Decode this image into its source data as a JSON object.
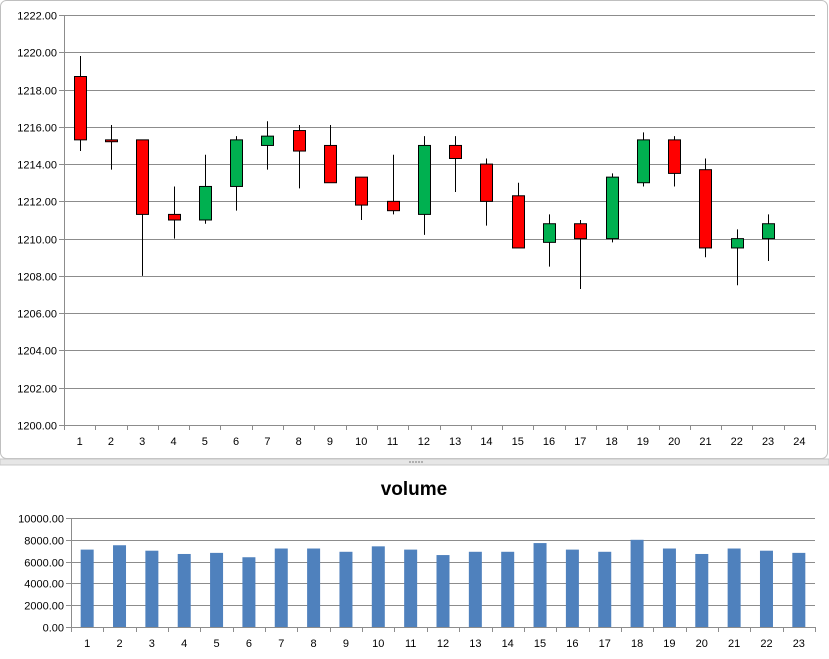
{
  "chart_data": [
    {
      "type": "candlestick",
      "title": "",
      "xlabel": "",
      "ylabel": "",
      "ylim": [
        1200,
        1222
      ],
      "y_ticks": [
        "1200.00",
        "1202.00",
        "1204.00",
        "1206.00",
        "1208.00",
        "1210.00",
        "1212.00",
        "1214.00",
        "1216.00",
        "1218.00",
        "1220.00",
        "1222.00"
      ],
      "categories": [
        "1",
        "2",
        "3",
        "4",
        "5",
        "6",
        "7",
        "8",
        "9",
        "10",
        "11",
        "12",
        "13",
        "14",
        "15",
        "16",
        "17",
        "18",
        "19",
        "20",
        "21",
        "22",
        "23",
        "24"
      ],
      "up_color": "#00b050",
      "down_color": "#ff0000",
      "grid": true,
      "ohlc": [
        {
          "x": 1,
          "open": 1218.7,
          "high": 1219.8,
          "low": 1214.7,
          "close": 1215.3
        },
        {
          "x": 2,
          "open": 1215.3,
          "high": 1216.1,
          "low": 1213.7,
          "close": 1215.2
        },
        {
          "x": 3,
          "open": 1215.3,
          "high": 1215.3,
          "low": 1208.0,
          "close": 1211.3
        },
        {
          "x": 4,
          "open": 1211.3,
          "high": 1212.8,
          "low": 1210.0,
          "close": 1211.0
        },
        {
          "x": 5,
          "open": 1211.0,
          "high": 1214.5,
          "low": 1210.8,
          "close": 1212.8
        },
        {
          "x": 6,
          "open": 1212.8,
          "high": 1215.5,
          "low": 1211.5,
          "close": 1215.3
        },
        {
          "x": 7,
          "open": 1215.0,
          "high": 1216.3,
          "low": 1213.7,
          "close": 1215.5
        },
        {
          "x": 8,
          "open": 1215.8,
          "high": 1216.1,
          "low": 1212.7,
          "close": 1214.7
        },
        {
          "x": 9,
          "open": 1215.0,
          "high": 1216.1,
          "low": 1213.0,
          "close": 1213.0
        },
        {
          "x": 10,
          "open": 1213.3,
          "high": 1213.3,
          "low": 1211.0,
          "close": 1211.8
        },
        {
          "x": 11,
          "open": 1212.0,
          "high": 1214.5,
          "low": 1211.3,
          "close": 1211.5
        },
        {
          "x": 12,
          "open": 1211.3,
          "high": 1215.5,
          "low": 1210.2,
          "close": 1215.0
        },
        {
          "x": 13,
          "open": 1215.0,
          "high": 1215.5,
          "low": 1212.5,
          "close": 1214.3
        },
        {
          "x": 14,
          "open": 1214.0,
          "high": 1214.3,
          "low": 1210.7,
          "close": 1212.0
        },
        {
          "x": 15,
          "open": 1212.3,
          "high": 1213.0,
          "low": 1209.5,
          "close": 1209.5
        },
        {
          "x": 16,
          "open": 1209.8,
          "high": 1211.3,
          "low": 1208.5,
          "close": 1210.8
        },
        {
          "x": 17,
          "open": 1210.8,
          "high": 1211.0,
          "low": 1207.3,
          "close": 1210.0
        },
        {
          "x": 18,
          "open": 1210.0,
          "high": 1213.5,
          "low": 1209.8,
          "close": 1213.3
        },
        {
          "x": 19,
          "open": 1213.0,
          "high": 1215.7,
          "low": 1212.8,
          "close": 1215.3
        },
        {
          "x": 20,
          "open": 1215.3,
          "high": 1215.5,
          "low": 1212.8,
          "close": 1213.5
        },
        {
          "x": 21,
          "open": 1213.7,
          "high": 1214.3,
          "low": 1209.0,
          "close": 1209.5
        },
        {
          "x": 22,
          "open": 1209.5,
          "high": 1210.5,
          "low": 1207.5,
          "close": 1210.0
        },
        {
          "x": 23,
          "open": 1210.0,
          "high": 1211.3,
          "low": 1208.8,
          "close": 1210.8
        }
      ]
    },
    {
      "type": "bar",
      "title": "volume",
      "xlabel": "",
      "ylabel": "",
      "ylim": [
        0,
        10000
      ],
      "y_ticks": [
        "0.00",
        "2000.00",
        "4000.00",
        "6000.00",
        "8000.00",
        "10000.00"
      ],
      "categories": [
        "1",
        "2",
        "3",
        "4",
        "5",
        "6",
        "7",
        "8",
        "9",
        "10",
        "11",
        "12",
        "13",
        "14",
        "15",
        "16",
        "17",
        "18",
        "19",
        "20",
        "21",
        "22",
        "23"
      ],
      "values": [
        7100,
        7500,
        7000,
        6700,
        6800,
        6400,
        7200,
        7200,
        6900,
        7400,
        7100,
        6600,
        6900,
        6900,
        7700,
        7100,
        6900,
        8000,
        7200,
        6700,
        7200,
        7000,
        6800
      ],
      "bar_color": "#4f81bd",
      "grid": true
    }
  ]
}
